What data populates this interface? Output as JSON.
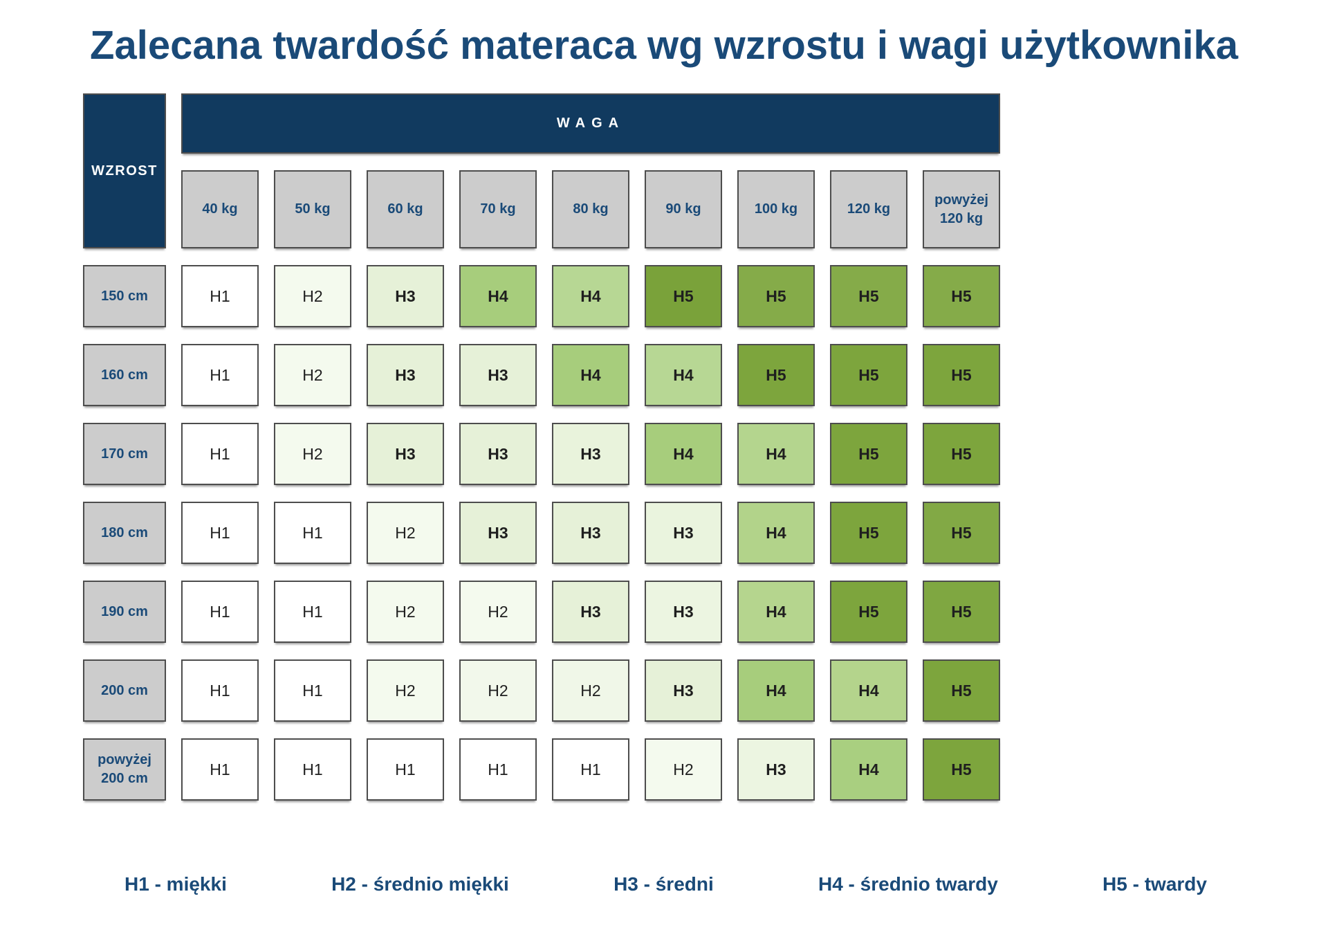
{
  "title": "Zalecana twardość materaca wg wzrostu i wagi użytkownika",
  "table": {
    "corner_label": "WZROST",
    "top_label": "WAGA",
    "columns": [
      "40 kg",
      "50 kg",
      "60 kg",
      "70 kg",
      "80 kg",
      "90 kg",
      "100 kg",
      "120 kg",
      "powyżej 120 kg"
    ],
    "rows": [
      {
        "label": "150 cm",
        "cells": [
          {
            "v": "H1",
            "c": "#ffffff"
          },
          {
            "v": "H2",
            "c": "#f4faee"
          },
          {
            "v": "H3",
            "c": "#e6f1d8"
          },
          {
            "v": "H4",
            "c": "#a7cd7c"
          },
          {
            "v": "H4",
            "c": "#b7d794"
          },
          {
            "v": "H5",
            "c": "#7aa23a"
          },
          {
            "v": "H5",
            "c": "#85ab49"
          },
          {
            "v": "H5",
            "c": "#85ab49"
          },
          {
            "v": "H5",
            "c": "#85ab49"
          }
        ]
      },
      {
        "label": "160 cm",
        "cells": [
          {
            "v": "H1",
            "c": "#ffffff"
          },
          {
            "v": "H2",
            "c": "#f4faee"
          },
          {
            "v": "H3",
            "c": "#e6f1d8"
          },
          {
            "v": "H3",
            "c": "#e6f1d8"
          },
          {
            "v": "H4",
            "c": "#a7cd7c"
          },
          {
            "v": "H4",
            "c": "#b7d794"
          },
          {
            "v": "H5",
            "c": "#7da53d"
          },
          {
            "v": "H5",
            "c": "#7da53d"
          },
          {
            "v": "H5",
            "c": "#7da53d"
          }
        ]
      },
      {
        "label": "170 cm",
        "cells": [
          {
            "v": "H1",
            "c": "#ffffff"
          },
          {
            "v": "H2",
            "c": "#f4faee"
          },
          {
            "v": "H3",
            "c": "#e6f1d8"
          },
          {
            "v": "H3",
            "c": "#e6f1d8"
          },
          {
            "v": "H3",
            "c": "#e9f3dc"
          },
          {
            "v": "H4",
            "c": "#a7cd7c"
          },
          {
            "v": "H4",
            "c": "#b4d58e"
          },
          {
            "v": "H5",
            "c": "#7da53d"
          },
          {
            "v": "H5",
            "c": "#7da53d"
          }
        ]
      },
      {
        "label": "180 cm",
        "cells": [
          {
            "v": "H1",
            "c": "#ffffff"
          },
          {
            "v": "H1",
            "c": "#ffffff"
          },
          {
            "v": "H2",
            "c": "#f4faee"
          },
          {
            "v": "H3",
            "c": "#e6f1d8"
          },
          {
            "v": "H3",
            "c": "#e6f1d8"
          },
          {
            "v": "H3",
            "c": "#eaf4de"
          },
          {
            "v": "H4",
            "c": "#b2d38a"
          },
          {
            "v": "H5",
            "c": "#7da53d"
          },
          {
            "v": "H5",
            "c": "#82a945"
          }
        ]
      },
      {
        "label": "190 cm",
        "cells": [
          {
            "v": "H1",
            "c": "#ffffff"
          },
          {
            "v": "H1",
            "c": "#ffffff"
          },
          {
            "v": "H2",
            "c": "#f4faee"
          },
          {
            "v": "H2",
            "c": "#f4faee"
          },
          {
            "v": "H3",
            "c": "#e6f1d8"
          },
          {
            "v": "H3",
            "c": "#ecf5e1"
          },
          {
            "v": "H4",
            "c": "#b5d58e"
          },
          {
            "v": "H5",
            "c": "#7da53d"
          },
          {
            "v": "H5",
            "c": "#7fa741"
          }
        ]
      },
      {
        "label": "200 cm",
        "cells": [
          {
            "v": "H1",
            "c": "#ffffff"
          },
          {
            "v": "H1",
            "c": "#ffffff"
          },
          {
            "v": "H2",
            "c": "#f4faee"
          },
          {
            "v": "H2",
            "c": "#f2f8eb"
          },
          {
            "v": "H2",
            "c": "#f0f7e8"
          },
          {
            "v": "H3",
            "c": "#e6f1d8"
          },
          {
            "v": "H4",
            "c": "#a7cd7c"
          },
          {
            "v": "H4",
            "c": "#b4d48c"
          },
          {
            "v": "H5",
            "c": "#7da53d"
          }
        ]
      },
      {
        "label": "powyżej 200 cm",
        "cells": [
          {
            "v": "H1",
            "c": "#ffffff"
          },
          {
            "v": "H1",
            "c": "#ffffff"
          },
          {
            "v": "H1",
            "c": "#ffffff"
          },
          {
            "v": "H1",
            "c": "#ffffff"
          },
          {
            "v": "H1",
            "c": "#ffffff"
          },
          {
            "v": "H2",
            "c": "#f4faee"
          },
          {
            "v": "H3",
            "c": "#ecf5e1"
          },
          {
            "v": "H4",
            "c": "#a9cf80"
          },
          {
            "v": "H5",
            "c": "#7da53d"
          }
        ]
      }
    ]
  },
  "legend": [
    {
      "label": "H1 - miękki"
    },
    {
      "label": "H2 - średnio miękki"
    },
    {
      "label": "H3 - średni"
    },
    {
      "label": "H4 - średnio twardy"
    },
    {
      "label": "H5 - twardy"
    }
  ],
  "palette": {
    "navy_fill": "#113a5f",
    "navy_text": "#1a4a78",
    "gray_cell": "#cccccc",
    "cell_border": "#4d4d4d",
    "h1": "#ffffff",
    "h2": "#f4faee",
    "h3": "#e6f1d8",
    "h4": "#a7cd7c",
    "h5": "#7da53d"
  },
  "chart_data": {
    "type": "heatmap",
    "title": "Zalecana twardość materaca wg wzrostu i wagi użytkownika",
    "x_label": "WAGA",
    "y_label": "WZROST",
    "x_categories": [
      "40 kg",
      "50 kg",
      "60 kg",
      "70 kg",
      "80 kg",
      "90 kg",
      "100 kg",
      "120 kg",
      "powyżej 120 kg"
    ],
    "y_categories": [
      "150 cm",
      "160 cm",
      "170 cm",
      "180 cm",
      "190 cm",
      "200 cm",
      "powyżej 200 cm"
    ],
    "values": [
      [
        "H1",
        "H2",
        "H3",
        "H4",
        "H4",
        "H5",
        "H5",
        "H5",
        "H5"
      ],
      [
        "H1",
        "H2",
        "H3",
        "H3",
        "H4",
        "H4",
        "H5",
        "H5",
        "H5"
      ],
      [
        "H1",
        "H2",
        "H3",
        "H3",
        "H3",
        "H4",
        "H4",
        "H5",
        "H5"
      ],
      [
        "H1",
        "H1",
        "H2",
        "H3",
        "H3",
        "H3",
        "H4",
        "H5",
        "H5"
      ],
      [
        "H1",
        "H1",
        "H2",
        "H2",
        "H3",
        "H3",
        "H4",
        "H5",
        "H5"
      ],
      [
        "H1",
        "H1",
        "H2",
        "H2",
        "H2",
        "H3",
        "H4",
        "H4",
        "H5"
      ],
      [
        "H1",
        "H1",
        "H1",
        "H1",
        "H1",
        "H2",
        "H3",
        "H4",
        "H5"
      ]
    ],
    "legend_entries": [
      "H1 - miękki",
      "H2 - średnio miękki",
      "H3 - średni",
      "H4 - średnio twardy",
      "H5 - twardy"
    ],
    "value_colors": {
      "H1": "#ffffff",
      "H2": "#f4faee",
      "H3": "#e6f1d8",
      "H4": "#a7cd7c",
      "H5": "#7da53d"
    },
    "grid": false,
    "legend_position": "bottom"
  }
}
